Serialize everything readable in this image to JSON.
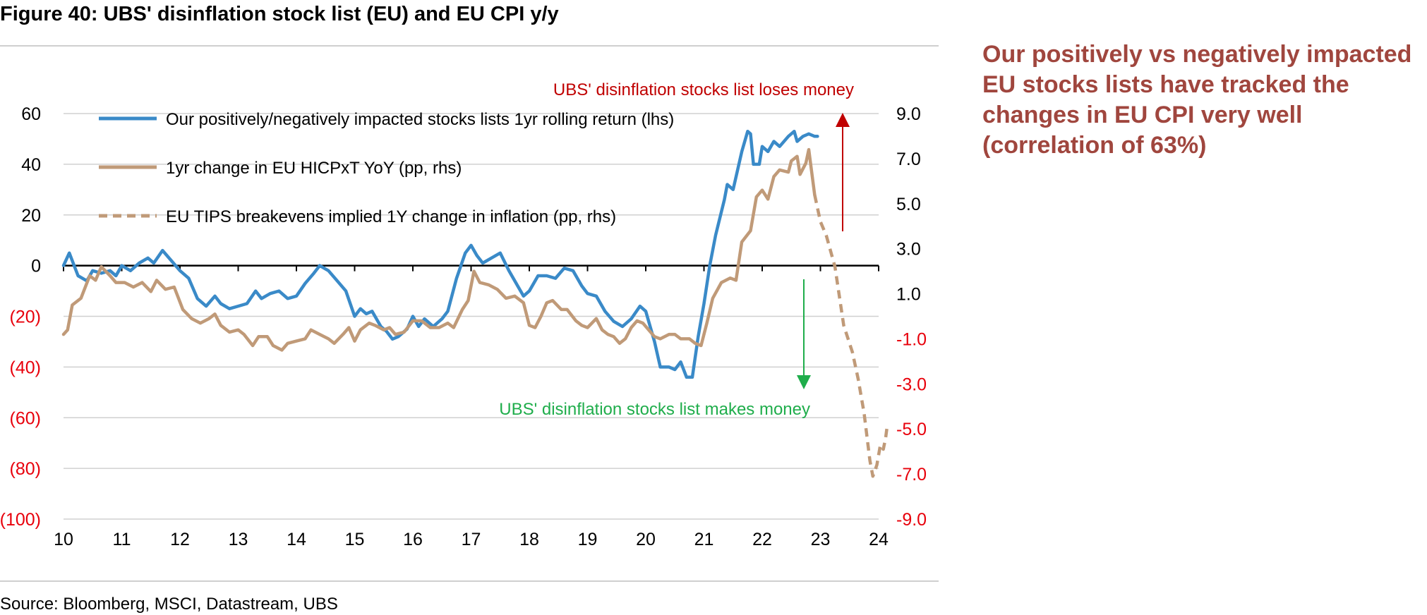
{
  "title": "Figure 40: UBS' disinflation stock list (EU) and EU CPI y/y",
  "source": "Source: Bloomberg, MSCI, Datastream, UBS",
  "side_note": "Our positively vs negatively impacted EU stocks lists have tracked the changes in EU CPI very well (correlation of 63%)",
  "colors": {
    "returns": "#3a8ac8",
    "cpi": "#c09a78",
    "tips": "#c09a78",
    "loses_money": "#c00000",
    "makes_money": "#1fad4b",
    "negative_ticks": "#e8000b",
    "side_note": "#a0463e",
    "grid": "#d0d0d0"
  },
  "chart_data": {
    "type": "line",
    "x_axis": {
      "min": 2010,
      "max": 2024,
      "ticks": [
        2010,
        2011,
        2012,
        2013,
        2014,
        2015,
        2016,
        2017,
        2018,
        2019,
        2020,
        2021,
        2022,
        2023,
        2024
      ],
      "tick_labels": [
        "10",
        "11",
        "12",
        "13",
        "14",
        "15",
        "16",
        "17",
        "18",
        "19",
        "20",
        "21",
        "22",
        "23",
        "24"
      ]
    },
    "y_left": {
      "min": -100,
      "max": 60,
      "ticks": [
        60,
        40,
        20,
        0,
        -20,
        -40,
        -60,
        -80,
        -100
      ],
      "tick_labels": [
        "60",
        "40",
        "20",
        "0",
        "(20)",
        "(40)",
        "(60)",
        "(80)",
        "(100)"
      ]
    },
    "y_right": {
      "min": -9,
      "max": 9,
      "ticks": [
        9,
        7,
        5,
        3,
        1,
        -1,
        -3,
        -5,
        -7,
        -9
      ],
      "tick_labels": [
        "9.0",
        "7.0",
        "5.0",
        "3.0",
        "1.0",
        "-1.0",
        "-3.0",
        "-5.0",
        "-7.0",
        "-9.0"
      ]
    },
    "grid": true,
    "legend_position": "top-left",
    "series": [
      {
        "name": "Our positively/negatively impacted stocks lists 1yr rolling return (lhs)",
        "axis": "left",
        "style": "solid",
        "points": [
          [
            2010,
            0
          ],
          [
            2010.1,
            5
          ],
          [
            2010.25,
            -4
          ],
          [
            2010.4,
            -6
          ],
          [
            2010.5,
            -2
          ],
          [
            2010.65,
            -3
          ],
          [
            2010.8,
            -2
          ],
          [
            2010.9,
            -4
          ],
          [
            2011,
            0
          ],
          [
            2011.15,
            -2
          ],
          [
            2011.3,
            1
          ],
          [
            2011.45,
            3
          ],
          [
            2011.55,
            1
          ],
          [
            2011.7,
            6
          ],
          [
            2011.85,
            2
          ],
          [
            2012,
            -2
          ],
          [
            2012.15,
            -5
          ],
          [
            2012.3,
            -13
          ],
          [
            2012.45,
            -16
          ],
          [
            2012.6,
            -12
          ],
          [
            2012.7,
            -15
          ],
          [
            2012.85,
            -17
          ],
          [
            2013,
            -16
          ],
          [
            2013.15,
            -15
          ],
          [
            2013.3,
            -10
          ],
          [
            2013.4,
            -13
          ],
          [
            2013.55,
            -11
          ],
          [
            2013.7,
            -10
          ],
          [
            2013.85,
            -13
          ],
          [
            2014,
            -12
          ],
          [
            2014.15,
            -7
          ],
          [
            2014.3,
            -3
          ],
          [
            2014.4,
            0
          ],
          [
            2014.55,
            -2
          ],
          [
            2014.7,
            -6
          ],
          [
            2014.85,
            -10
          ],
          [
            2015,
            -20
          ],
          [
            2015.1,
            -17
          ],
          [
            2015.2,
            -19
          ],
          [
            2015.3,
            -18
          ],
          [
            2015.45,
            -24
          ],
          [
            2015.55,
            -26
          ],
          [
            2015.65,
            -29
          ],
          [
            2015.75,
            -28
          ],
          [
            2015.9,
            -25
          ],
          [
            2016,
            -20
          ],
          [
            2016.1,
            -24
          ],
          [
            2016.2,
            -21
          ],
          [
            2016.35,
            -24
          ],
          [
            2016.5,
            -21
          ],
          [
            2016.6,
            -18
          ],
          [
            2016.75,
            -5
          ],
          [
            2016.9,
            5
          ],
          [
            2017,
            8
          ],
          [
            2017.1,
            4
          ],
          [
            2017.2,
            1
          ],
          [
            2017.35,
            3
          ],
          [
            2017.5,
            5
          ],
          [
            2017.65,
            -2
          ],
          [
            2017.8,
            -8
          ],
          [
            2017.9,
            -12
          ],
          [
            2018,
            -10
          ],
          [
            2018.15,
            -4
          ],
          [
            2018.3,
            -4
          ],
          [
            2018.45,
            -5
          ],
          [
            2018.6,
            -1
          ],
          [
            2018.75,
            -2
          ],
          [
            2018.9,
            -8
          ],
          [
            2019,
            -11
          ],
          [
            2019.15,
            -12
          ],
          [
            2019.3,
            -18
          ],
          [
            2019.45,
            -22
          ],
          [
            2019.6,
            -24
          ],
          [
            2019.75,
            -21
          ],
          [
            2019.9,
            -16
          ],
          [
            2020,
            -18
          ],
          [
            2020.15,
            -30
          ],
          [
            2020.25,
            -40
          ],
          [
            2020.4,
            -40
          ],
          [
            2020.5,
            -41
          ],
          [
            2020.6,
            -38
          ],
          [
            2020.7,
            -44
          ],
          [
            2020.8,
            -44
          ],
          [
            2020.9,
            -28
          ],
          [
            2021,
            -15
          ],
          [
            2021.1,
            0
          ],
          [
            2021.2,
            12
          ],
          [
            2021.35,
            26
          ],
          [
            2021.4,
            32
          ],
          [
            2021.5,
            30
          ],
          [
            2021.65,
            45
          ],
          [
            2021.75,
            53
          ],
          [
            2021.8,
            52
          ],
          [
            2021.85,
            40
          ],
          [
            2021.95,
            40
          ],
          [
            2022,
            47
          ],
          [
            2022.1,
            45
          ],
          [
            2022.2,
            49
          ],
          [
            2022.3,
            47
          ],
          [
            2022.45,
            51
          ],
          [
            2022.55,
            53
          ],
          [
            2022.6,
            49
          ],
          [
            2022.7,
            51
          ],
          [
            2022.8,
            52
          ],
          [
            2022.9,
            51
          ],
          [
            2022.95,
            51
          ]
        ]
      },
      {
        "name": "1yr change in EU HICPxT YoY (pp, rhs)",
        "axis": "right",
        "style": "solid",
        "points": [
          [
            2010,
            -0.8
          ],
          [
            2010.07,
            -0.6
          ],
          [
            2010.15,
            0.5
          ],
          [
            2010.3,
            0.8
          ],
          [
            2010.45,
            1.8
          ],
          [
            2010.55,
            1.6
          ],
          [
            2010.65,
            2.2
          ],
          [
            2010.8,
            1.8
          ],
          [
            2010.9,
            1.5
          ],
          [
            2011.05,
            1.5
          ],
          [
            2011.2,
            1.3
          ],
          [
            2011.35,
            1.5
          ],
          [
            2011.5,
            1.1
          ],
          [
            2011.6,
            1.6
          ],
          [
            2011.75,
            1.2
          ],
          [
            2011.9,
            1.3
          ],
          [
            2012.05,
            0.3
          ],
          [
            2012.2,
            -0.1
          ],
          [
            2012.35,
            -0.3
          ],
          [
            2012.5,
            -0.1
          ],
          [
            2012.6,
            0.1
          ],
          [
            2012.7,
            -0.4
          ],
          [
            2012.85,
            -0.7
          ],
          [
            2013,
            -0.6
          ],
          [
            2013.1,
            -0.8
          ],
          [
            2013.25,
            -1.3
          ],
          [
            2013.35,
            -0.9
          ],
          [
            2013.5,
            -0.9
          ],
          [
            2013.6,
            -1.3
          ],
          [
            2013.75,
            -1.5
          ],
          [
            2013.85,
            -1.2
          ],
          [
            2014,
            -1.1
          ],
          [
            2014.15,
            -1.0
          ],
          [
            2014.25,
            -0.6
          ],
          [
            2014.4,
            -0.8
          ],
          [
            2014.55,
            -1.0
          ],
          [
            2014.65,
            -1.2
          ],
          [
            2014.8,
            -0.8
          ],
          [
            2014.9,
            -0.5
          ],
          [
            2015,
            -1.1
          ],
          [
            2015.1,
            -0.6
          ],
          [
            2015.25,
            -0.3
          ],
          [
            2015.35,
            -0.4
          ],
          [
            2015.5,
            -0.6
          ],
          [
            2015.6,
            -0.5
          ],
          [
            2015.7,
            -0.8
          ],
          [
            2015.85,
            -0.7
          ],
          [
            2016,
            -0.2
          ],
          [
            2016.15,
            -0.2
          ],
          [
            2016.3,
            -0.5
          ],
          [
            2016.45,
            -0.5
          ],
          [
            2016.6,
            -0.3
          ],
          [
            2016.7,
            -0.5
          ],
          [
            2016.85,
            0.3
          ],
          [
            2016.95,
            0.7
          ],
          [
            2017.05,
            2.0
          ],
          [
            2017.15,
            1.5
          ],
          [
            2017.3,
            1.4
          ],
          [
            2017.45,
            1.2
          ],
          [
            2017.6,
            0.8
          ],
          [
            2017.75,
            0.9
          ],
          [
            2017.9,
            0.6
          ],
          [
            2018,
            -0.4
          ],
          [
            2018.1,
            -0.5
          ],
          [
            2018.2,
            0.0
          ],
          [
            2018.3,
            0.6
          ],
          [
            2018.4,
            0.7
          ],
          [
            2018.55,
            0.3
          ],
          [
            2018.65,
            0.3
          ],
          [
            2018.8,
            -0.2
          ],
          [
            2018.9,
            -0.4
          ],
          [
            2019,
            -0.5
          ],
          [
            2019.15,
            -0.1
          ],
          [
            2019.25,
            -0.6
          ],
          [
            2019.35,
            -0.8
          ],
          [
            2019.45,
            -0.9
          ],
          [
            2019.55,
            -1.2
          ],
          [
            2019.65,
            -1.0
          ],
          [
            2019.75,
            -0.5
          ],
          [
            2019.85,
            -0.2
          ],
          [
            2019.95,
            -0.3
          ],
          [
            2020.05,
            -0.6
          ],
          [
            2020.15,
            -0.9
          ],
          [
            2020.25,
            -1.0
          ],
          [
            2020.4,
            -0.8
          ],
          [
            2020.5,
            -0.8
          ],
          [
            2020.6,
            -1.0
          ],
          [
            2020.75,
            -1.0
          ],
          [
            2020.85,
            -1.2
          ],
          [
            2020.95,
            -1.3
          ],
          [
            2021.05,
            -0.3
          ],
          [
            2021.15,
            0.8
          ],
          [
            2021.3,
            1.5
          ],
          [
            2021.45,
            1.7
          ],
          [
            2021.55,
            1.6
          ],
          [
            2021.65,
            3.3
          ],
          [
            2021.8,
            3.8
          ],
          [
            2021.9,
            5.3
          ],
          [
            2022,
            5.6
          ],
          [
            2022.1,
            5.2
          ],
          [
            2022.2,
            6.2
          ],
          [
            2022.3,
            6.5
          ],
          [
            2022.45,
            6.4
          ],
          [
            2022.5,
            6.9
          ],
          [
            2022.6,
            7.1
          ],
          [
            2022.65,
            6.3
          ],
          [
            2022.75,
            6.8
          ],
          [
            2022.8,
            7.4
          ],
          [
            2022.9,
            5.4
          ]
        ]
      },
      {
        "name": "EU TIPS breakevens implied 1Y change in inflation (pp, rhs)",
        "axis": "right",
        "style": "dashed",
        "points": [
          [
            2022.9,
            5.4
          ],
          [
            2023.0,
            4.2
          ],
          [
            2023.1,
            3.6
          ],
          [
            2023.25,
            2.2
          ],
          [
            2023.4,
            -0.4
          ],
          [
            2023.55,
            -1.6
          ],
          [
            2023.65,
            -2.8
          ],
          [
            2023.75,
            -4.3
          ],
          [
            2023.85,
            -6.4
          ],
          [
            2023.9,
            -7.1
          ],
          [
            2023.97,
            -6.6
          ],
          [
            2024.03,
            -5.7
          ],
          [
            2024.08,
            -5.9
          ],
          [
            2024.12,
            -5.4
          ],
          [
            2024.15,
            -4.8
          ]
        ]
      }
    ],
    "annotations": [
      {
        "id": "loses",
        "text": "UBS' disinflation stocks list loses money",
        "arrow": "up"
      },
      {
        "id": "makes",
        "text": "UBS' disinflation stocks list makes money",
        "arrow": "down"
      }
    ]
  }
}
